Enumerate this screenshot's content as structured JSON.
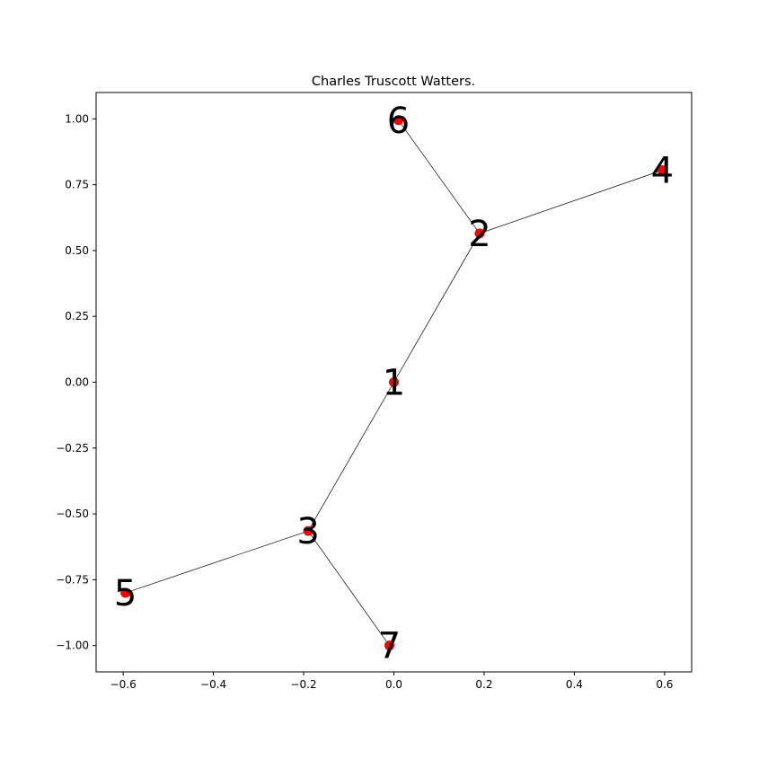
{
  "chart_data": {
    "type": "scatter",
    "title": "Charles Truscott Watters.",
    "xlabel": "",
    "ylabel": "",
    "xlim": [
      -0.66,
      0.66
    ],
    "ylim": [
      -1.1,
      1.1
    ],
    "xticks": [
      -0.6,
      -0.4,
      -0.2,
      0.0,
      0.2,
      0.4,
      0.6
    ],
    "xtick_labels": [
      "−0.6",
      "−0.4",
      "−0.2",
      "0.0",
      "0.2",
      "0.4",
      "0.6"
    ],
    "yticks": [
      1.0,
      0.75,
      0.5,
      0.25,
      0.0,
      -0.25,
      -0.5,
      -0.75,
      -1.0
    ],
    "ytick_labels": [
      "1.00",
      "0.75",
      "0.50",
      "0.25",
      "0.00",
      "−0.25",
      "−0.50",
      "−0.75",
      "−1.00"
    ],
    "grid": false,
    "marker_color": "#ff0000",
    "edge_color": "#000000",
    "nodes": [
      {
        "id": "1",
        "x": 0.0,
        "y": 0.0
      },
      {
        "id": "2",
        "x": 0.19,
        "y": 0.565
      },
      {
        "id": "3",
        "x": -0.19,
        "y": -0.565
      },
      {
        "id": "4",
        "x": 0.595,
        "y": 0.805
      },
      {
        "id": "5",
        "x": -0.595,
        "y": -0.8
      },
      {
        "id": "6",
        "x": 0.01,
        "y": 0.995
      },
      {
        "id": "7",
        "x": -0.01,
        "y": -1.0
      }
    ],
    "edges": [
      [
        "1",
        "2"
      ],
      [
        "1",
        "3"
      ],
      [
        "2",
        "4"
      ],
      [
        "2",
        "6"
      ],
      [
        "3",
        "5"
      ],
      [
        "3",
        "7"
      ]
    ]
  }
}
